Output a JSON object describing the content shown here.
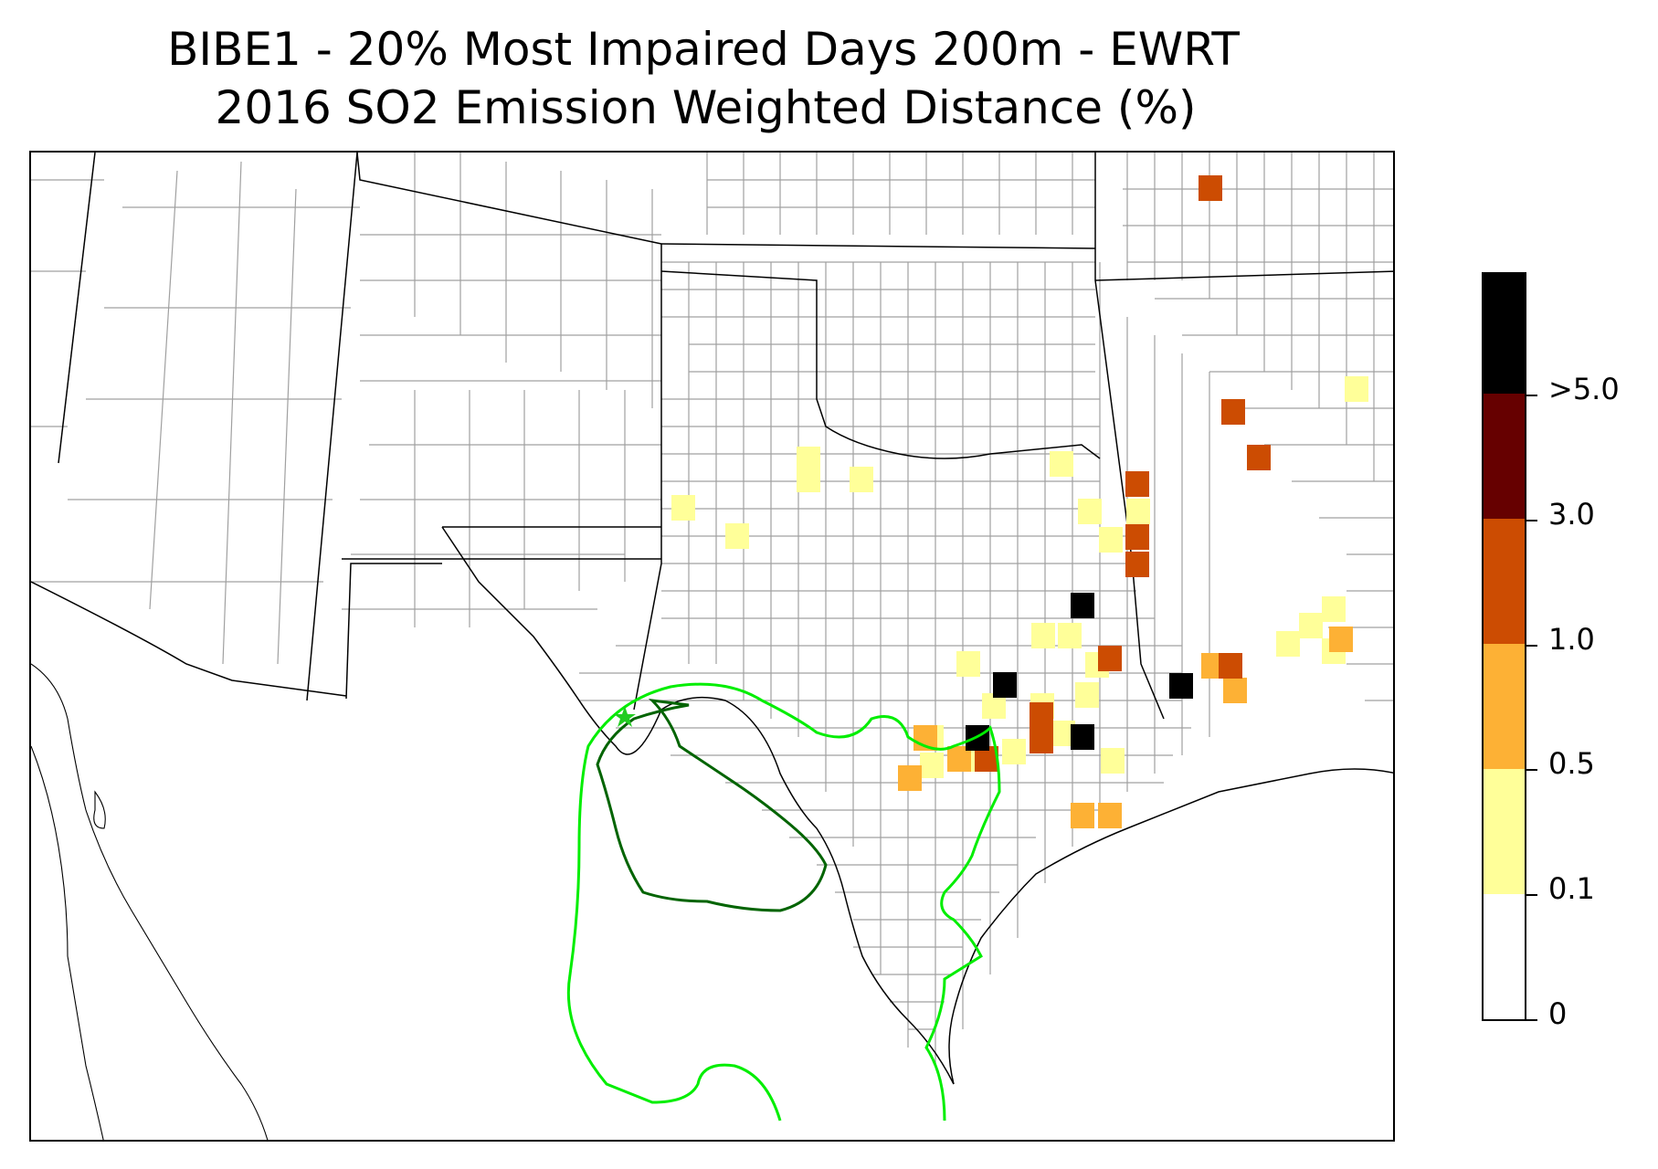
{
  "title": {
    "line1": "BIBE1 - 20% Most Impaired Days 200m - EWRT",
    "line2": "2016 SO2 Emission Weighted Distance (%)"
  },
  "colors": {
    "state_border": "#000000",
    "county_border": "#a0a0a0",
    "coastline": "#000000",
    "inner_contour": "#006400",
    "outer_contour": "#00ee00",
    "site_marker": "#22cc22"
  },
  "site_marker": {
    "name": "BIBE1",
    "icon": "star-icon"
  },
  "colorbar": {
    "bins": [
      {
        "range": "0 - 0.1",
        "color": "#ffffff"
      },
      {
        "range": "0.1 - 0.5",
        "color": "#ffff99"
      },
      {
        "range": "0.5 - 1.0",
        "color": "#fdb135"
      },
      {
        "range": "1.0 - 3.0",
        "color": "#cc4c02"
      },
      {
        "range": "3.0 - 5.0",
        "color": "#660000"
      },
      {
        "range": ">5.0",
        "color": "#000000"
      }
    ],
    "labels": [
      "0",
      "0.1",
      "0.5",
      "1.0",
      "3.0",
      ">5.0"
    ]
  },
  "grid_cells": [
    {
      "bin": 1,
      "i": 5
    },
    {
      "bin": 1,
      "i": 6
    },
    {
      "bin": 1,
      "i": 7
    },
    {
      "bin": 1,
      "i": 8
    },
    {
      "bin": 1,
      "i": 9
    },
    {
      "bin": 1,
      "i": 10
    },
    {
      "bin": 1,
      "i": 11
    },
    {
      "bin": 1,
      "i": 12
    },
    {
      "bin": 1,
      "i": 13
    },
    {
      "bin": 1,
      "i": 14
    },
    {
      "bin": 1,
      "i": 15
    },
    {
      "bin": 1,
      "i": 16
    },
    {
      "bin": 1,
      "i": 17
    },
    {
      "bin": 1,
      "i": 18
    },
    {
      "bin": 1,
      "i": 19
    },
    {
      "bin": 1,
      "i": 20
    },
    {
      "bin": 1,
      "i": 21
    },
    {
      "bin": 1,
      "i": 22
    },
    {
      "bin": 1,
      "i": 23
    },
    {
      "bin": 1,
      "i": 24
    },
    {
      "bin": 1,
      "i": 25
    },
    {
      "bin": 1,
      "i": 26
    },
    {
      "bin": 1,
      "i": 27
    },
    {
      "bin": 1,
      "i": 28
    },
    {
      "bin": 1,
      "i": 29
    },
    {
      "bin": 1,
      "i": 30
    },
    {
      "bin": 1,
      "i": 31
    },
    {
      "bin": 2,
      "i": 1
    },
    {
      "bin": 2,
      "i": 2
    },
    {
      "bin": 2,
      "i": 3
    },
    {
      "bin": 2,
      "i": 4
    },
    {
      "bin": 2,
      "i": 5
    },
    {
      "bin": 2,
      "i": 6
    },
    {
      "bin": 2,
      "i": 7
    },
    {
      "bin": 2,
      "i": 8
    },
    {
      "bin": 2,
      "i": 9
    },
    {
      "bin": 3,
      "i": 1
    },
    {
      "bin": 3,
      "i": 2
    },
    {
      "bin": 3,
      "i": 3
    },
    {
      "bin": 3,
      "i": 4
    },
    {
      "bin": 3,
      "i": 5
    },
    {
      "bin": 3,
      "i": 6
    },
    {
      "bin": 3,
      "i": 7
    },
    {
      "bin": 3,
      "i": 8
    },
    {
      "bin": 3,
      "i": 9
    },
    {
      "bin": 3,
      "i": 10
    },
    {
      "bin": 3,
      "i": 11
    },
    {
      "bin": 5,
      "i": 1
    },
    {
      "bin": 5,
      "i": 2
    },
    {
      "bin": 5,
      "i": 3
    },
    {
      "bin": 5,
      "i": 4
    },
    {
      "bin": 5,
      "i": 5
    }
  ]
}
